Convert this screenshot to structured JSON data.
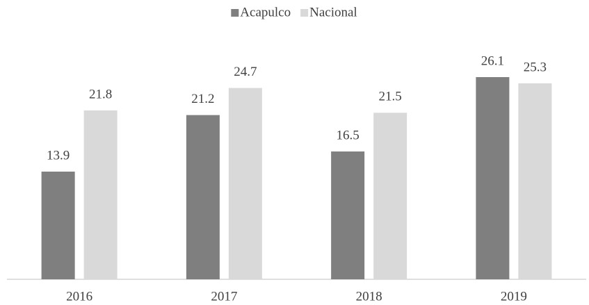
{
  "chart_data": {
    "type": "bar",
    "categories": [
      "2016",
      "2017",
      "2018",
      "2019"
    ],
    "series": [
      {
        "name": "Acapulco",
        "color": "#7f7f7f",
        "values": [
          13.9,
          21.2,
          16.5,
          26.1
        ]
      },
      {
        "name": "Nacional",
        "color": "#d9d9d9",
        "values": [
          21.8,
          24.7,
          21.5,
          25.3
        ]
      }
    ],
    "ylim": [
      0,
      30
    ],
    "legend": "top"
  }
}
